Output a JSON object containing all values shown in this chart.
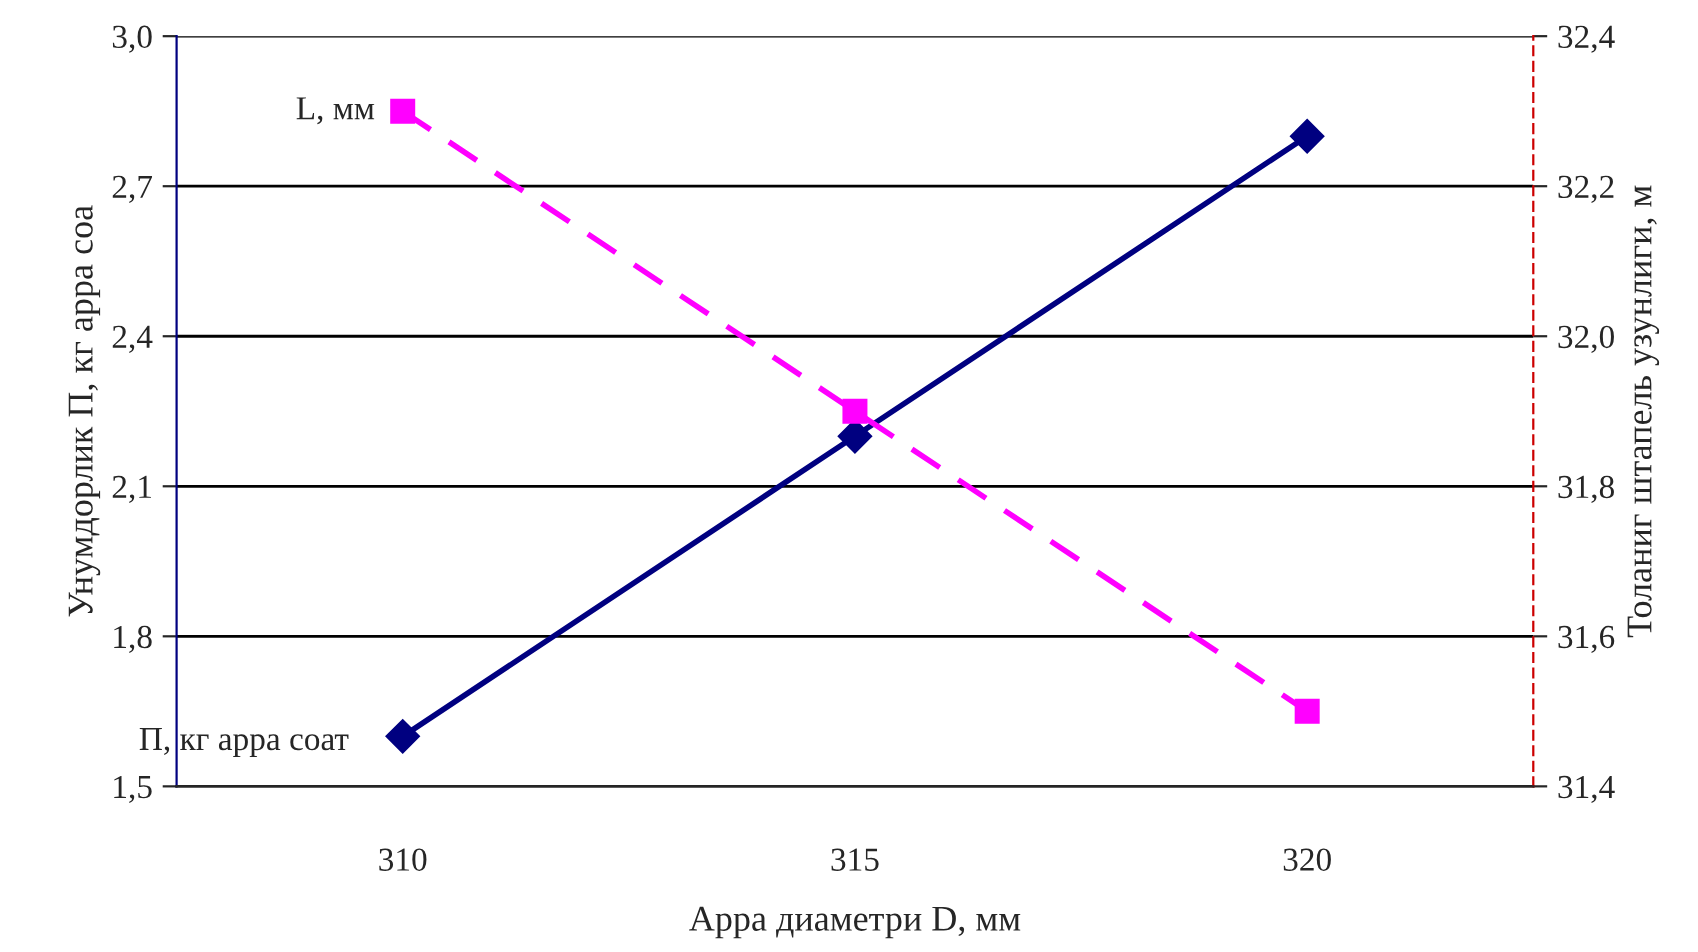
{
  "chart_data": {
    "type": "line",
    "xlabel": "Арра диаметри D, мм",
    "ylabel": "Унумдорлик П, кг арра соа",
    "y2label": "Толаниг штапель узунлиги, м",
    "categories": [
      "310",
      "315",
      "320"
    ],
    "series": [
      {
        "name": "П, кг арра соат",
        "color": "#000080",
        "values": [
          1.6,
          2.2,
          2.8
        ],
        "marker": "diamond",
        "line_style": "solid"
      },
      {
        "name": "L, мм",
        "color": "#ff00ff",
        "values": [
          32.3,
          31.9,
          31.5
        ],
        "axis": "y2",
        "marker": "square",
        "line_style": "dashed"
      }
    ],
    "ylim": [
      1.5,
      3.0
    ],
    "yticks": [
      {
        "value": 1.5,
        "label": "1,5"
      },
      {
        "value": 1.8,
        "label": "1,8"
      },
      {
        "value": 2.1,
        "label": "2,1"
      },
      {
        "value": 2.4,
        "label": "2,4"
      },
      {
        "value": 2.7,
        "label": "2,7"
      },
      {
        "value": 3.0,
        "label": "3,0"
      }
    ],
    "y2lim": [
      31.4,
      32.4
    ],
    "y2ticks": [
      {
        "value": 31.4,
        "label": "31,4"
      },
      {
        "value": 31.6,
        "label": "31,6"
      },
      {
        "value": 31.8,
        "label": "31,8"
      },
      {
        "value": 32.0,
        "label": "32,0"
      },
      {
        "value": 32.2,
        "label": "32,2"
      },
      {
        "value": 32.4,
        "label": "32,4"
      }
    ],
    "grid": "y"
  }
}
